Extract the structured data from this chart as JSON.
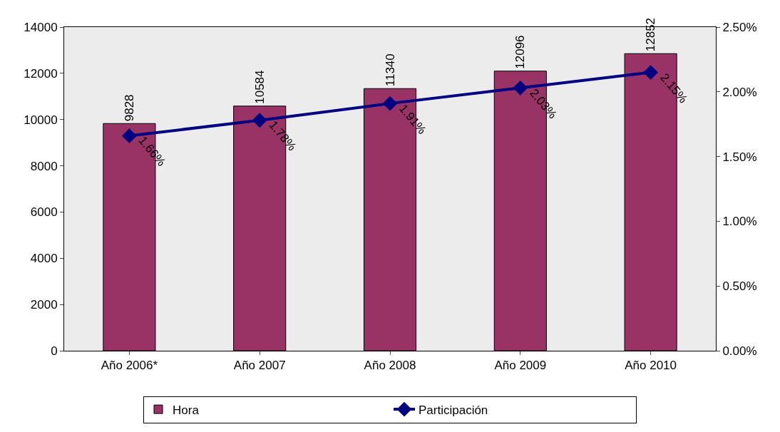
{
  "chart_data": {
    "type": "bar",
    "categories": [
      "Año 2006*",
      "Año 2007",
      "Año 2008",
      "Año 2009",
      "Año 2010"
    ],
    "series": [
      {
        "name": "Hora",
        "color": "#993366",
        "values": [
          9828,
          10584,
          11340,
          12096,
          12852
        ],
        "value_labels": [
          "9828",
          "10584",
          "11340",
          "12096",
          "12852"
        ]
      },
      {
        "name": "Participación",
        "type": "line",
        "axis": "y2",
        "color": "#000080",
        "marker": "diamond",
        "values": [
          1.66,
          1.78,
          1.91,
          2.03,
          2.15
        ],
        "value_labels": [
          "1.66%",
          "1.78%",
          "1.91%",
          "2.03%",
          "2.15%"
        ]
      }
    ],
    "ylim": [
      0,
      14000
    ],
    "yticks": [
      0,
      2000,
      4000,
      6000,
      8000,
      10000,
      12000,
      14000
    ],
    "y2lim": [
      0,
      2.5
    ],
    "y2ticks": [
      {
        "value": 0,
        "label": "0.00%"
      },
      {
        "value": 0.5,
        "label": "0.50%"
      },
      {
        "value": 1,
        "label": "1.00%"
      },
      {
        "value": 1.5,
        "label": "1.50%"
      },
      {
        "value": 2,
        "label": "2.00%"
      },
      {
        "value": 2.5,
        "label": "2.50%"
      }
    ],
    "grid": false,
    "legend": "bottom"
  }
}
